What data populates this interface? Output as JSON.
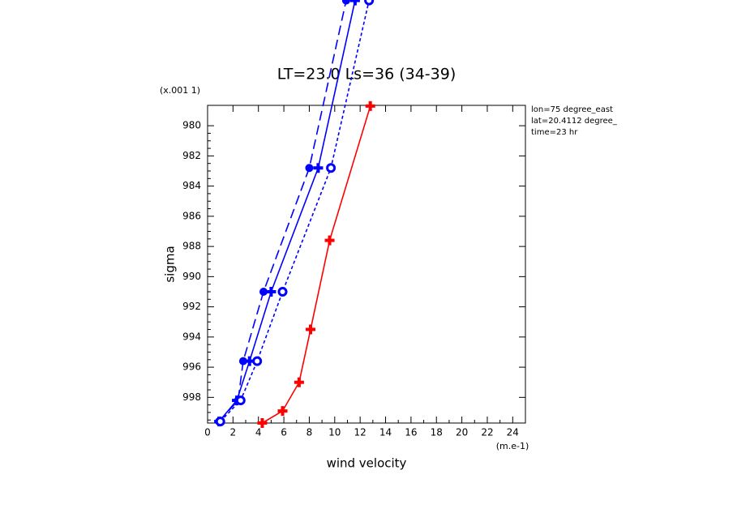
{
  "chart_data": {
    "type": "line",
    "title": "LT=23.0 Ls=36 (34-39)",
    "x_label": "wind velocity",
    "y_label": "sigma",
    "x_unit": "(m.e-1)",
    "y_unit": "(x.001 1)",
    "annotations": [
      "lon=75 degree_east",
      "lat=20.4112 degree_",
      "time=23 hr"
    ],
    "xlim": [
      0,
      25
    ],
    "xticks": [
      0,
      2,
      4,
      6,
      8,
      10,
      12,
      14,
      16,
      18,
      20,
      22,
      24
    ],
    "ylim": [
      999.7,
      978.65
    ],
    "yticks": [
      980,
      982,
      984,
      986,
      988,
      990,
      992,
      994,
      996,
      998
    ],
    "series": [
      {
        "color": "#ff0000",
        "dash": "solid",
        "marker": "plus",
        "x": [
          4.3,
          5.9,
          7.2,
          8.1,
          9.6,
          12.8
        ],
        "values": [
          999.7,
          998.9,
          997.0,
          993.5,
          987.6,
          978.7
        ]
      },
      {
        "color": "#0000ff",
        "dash": "solid",
        "marker": "plus",
        "x": [
          0.9,
          2.3,
          3.3,
          5.0,
          8.7,
          11.6
        ],
        "values": [
          999.6,
          998.2,
          995.6,
          991.0,
          982.8,
          971.7
        ]
      },
      {
        "color": "#0000ff",
        "dash": "long",
        "marker": "dot",
        "x": [
          0.9,
          2.4,
          2.8,
          4.4,
          8.0,
          10.9
        ],
        "values": [
          999.6,
          998.2,
          995.6,
          991.0,
          982.8,
          971.7
        ]
      },
      {
        "color": "#0000ff",
        "dash": "short",
        "marker": "ring",
        "x": [
          1.0,
          2.6,
          3.9,
          5.9,
          9.7,
          12.7
        ],
        "values": [
          999.6,
          998.2,
          995.6,
          991.0,
          982.8,
          971.7
        ]
      }
    ]
  }
}
